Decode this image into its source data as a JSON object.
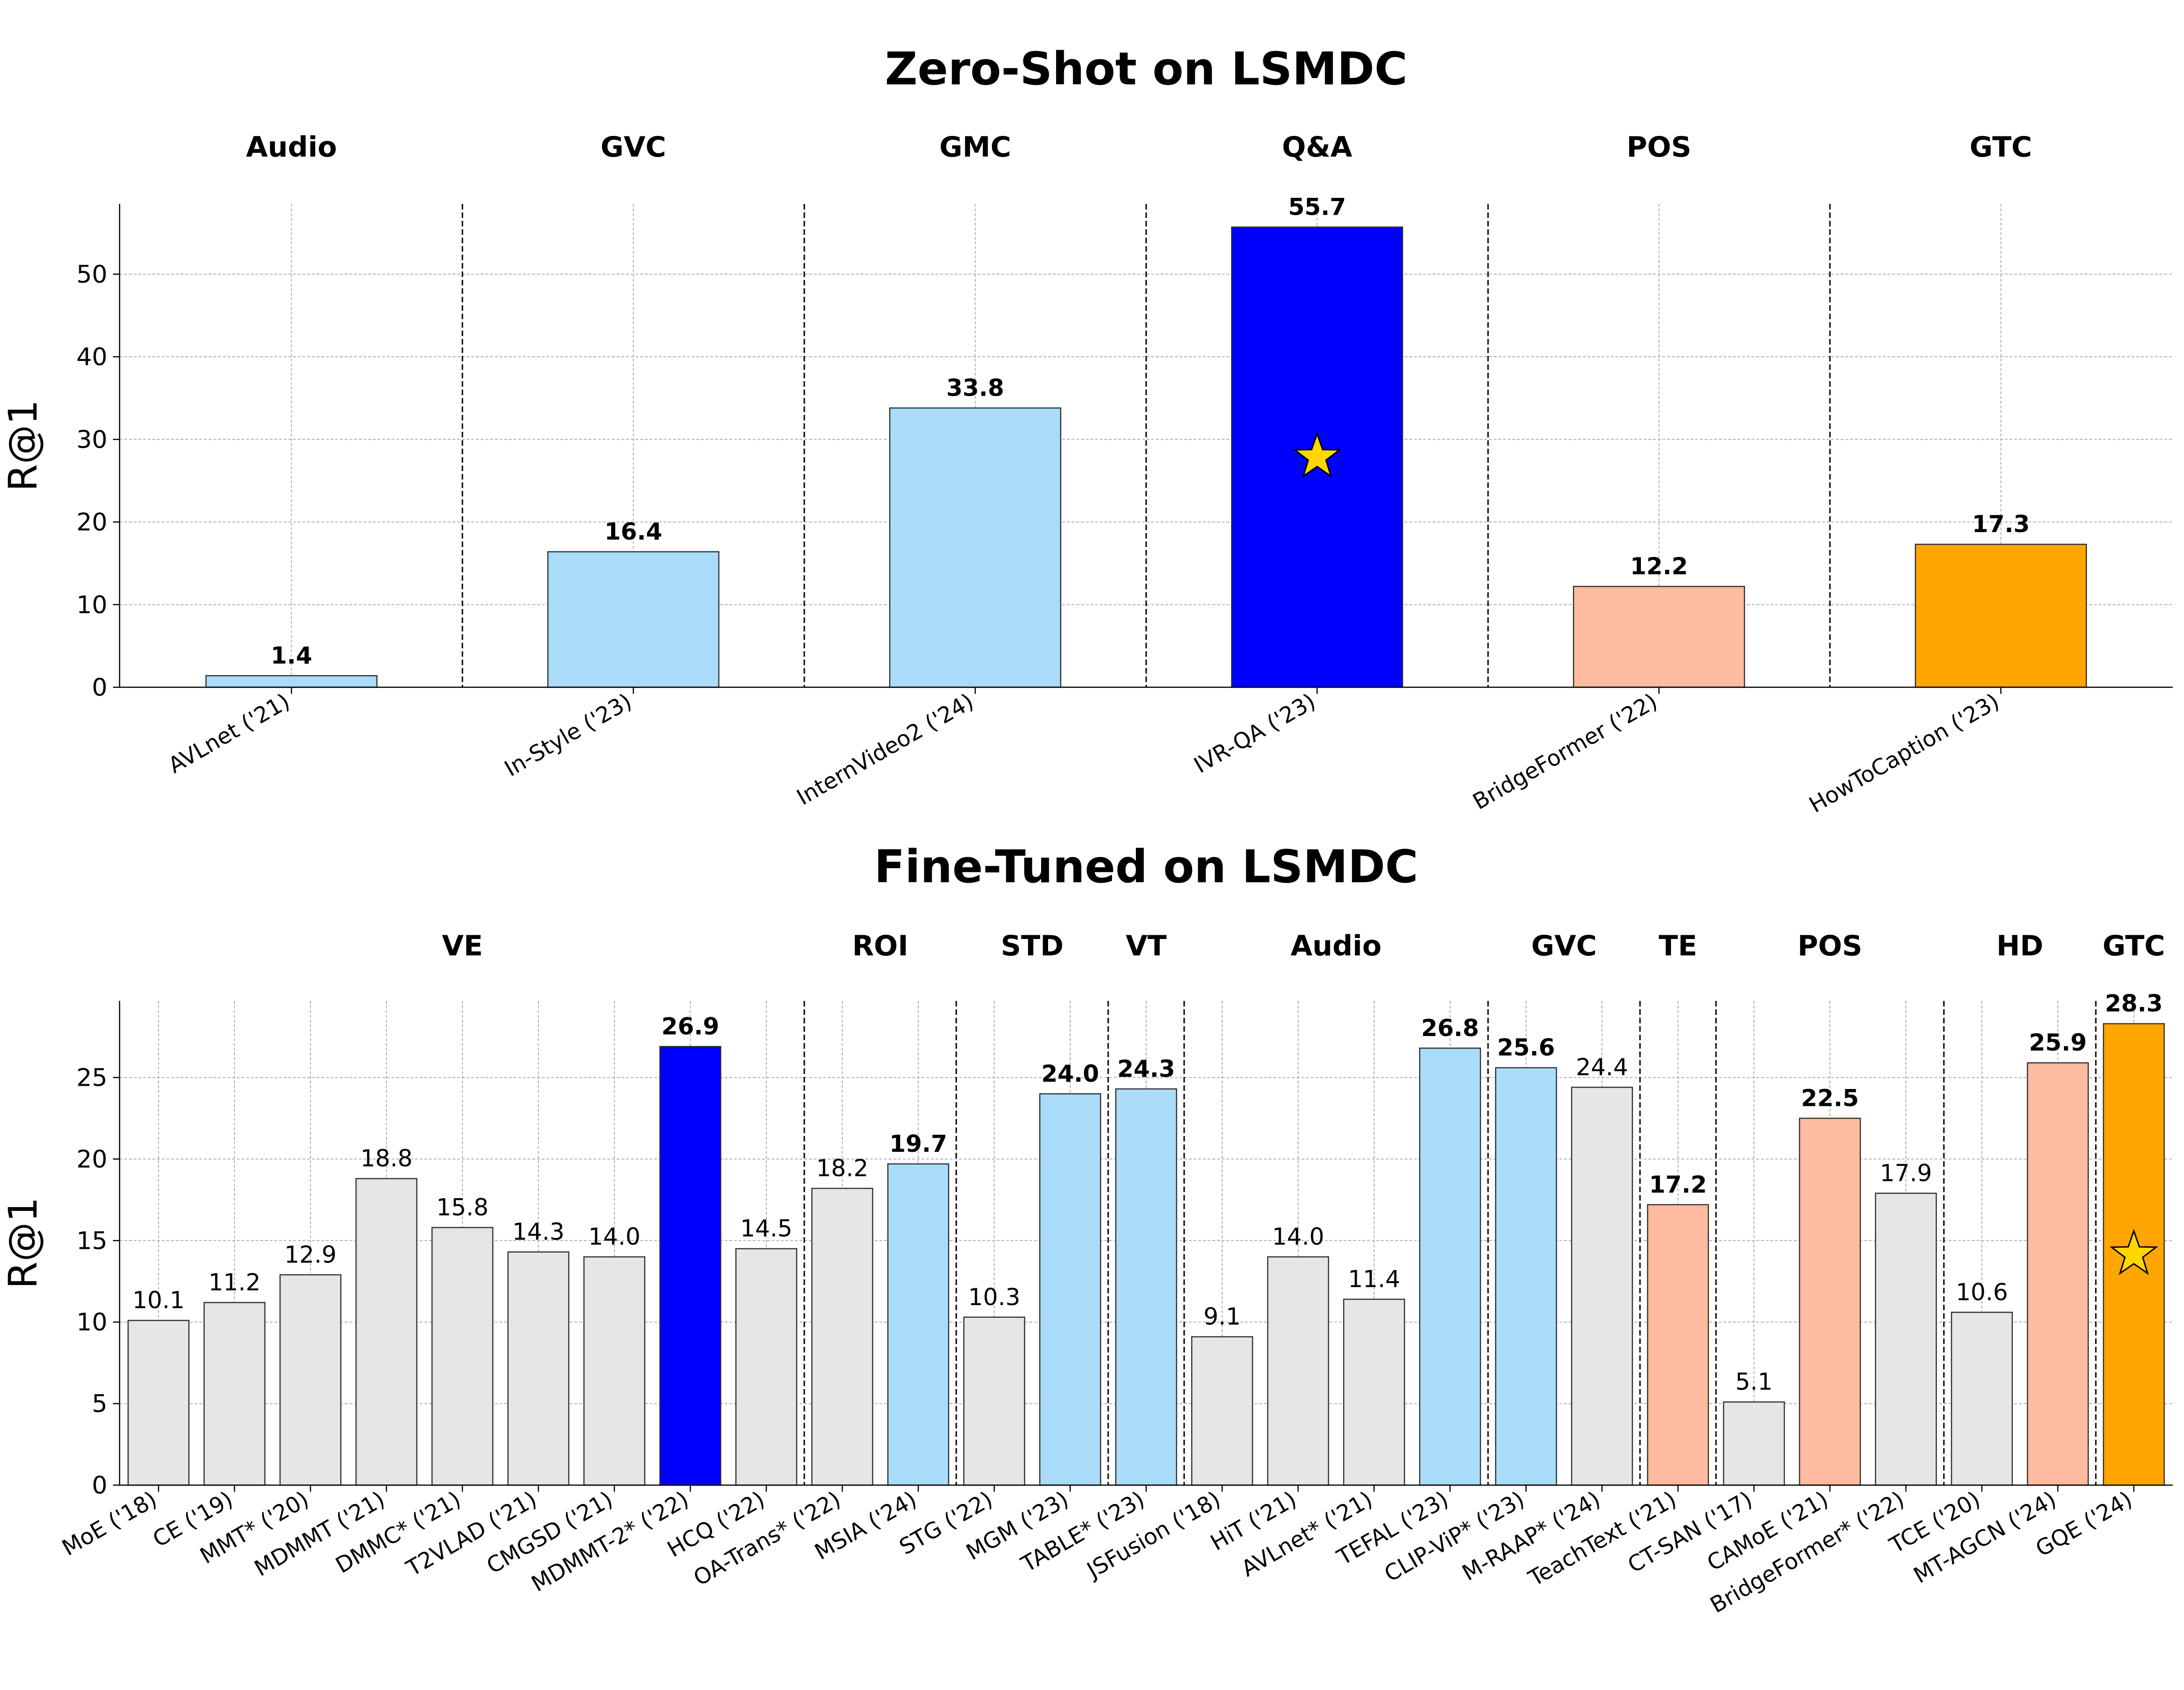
{
  "chart_data": [
    {
      "type": "bar",
      "title": "Zero-Shot on LSMDC",
      "xlabel": "",
      "ylabel": "R@1",
      "ylim": [
        0,
        58.5
      ],
      "yticks": [
        0,
        10,
        20,
        30,
        40,
        50
      ],
      "grid": true,
      "groups": [
        {
          "label": "Audio",
          "count": 1
        },
        {
          "label": "GVC",
          "count": 1
        },
        {
          "label": "GMC",
          "count": 1
        },
        {
          "label": "Q&A",
          "count": 1
        },
        {
          "label": "POS",
          "count": 1
        },
        {
          "label": "GTC",
          "count": 1
        }
      ],
      "categories": [
        "AVLnet ('21)",
        "In-Style ('23)",
        "InternVideo2 ('24)",
        "IVR-QA ('23)",
        "BridgeFormer ('22)",
        "HowToCaption ('23)"
      ],
      "values": [
        1.4,
        16.4,
        33.8,
        55.7,
        12.2,
        17.3
      ],
      "value_labels": [
        "1.4",
        "16.4",
        "33.8",
        "55.7",
        "12.2",
        "17.3"
      ],
      "bold_labels": [
        true,
        true,
        true,
        true,
        true,
        true
      ],
      "bar_colors": [
        "#aadcfa",
        "#aadcfa",
        "#aadcfa",
        "#0000ff",
        "#ffbba0",
        "#ffa500"
      ],
      "star_index": 3,
      "star_fill": "#ffd700"
    },
    {
      "type": "bar",
      "title": "Fine-Tuned on LSMDC",
      "xlabel": "",
      "ylabel": "R@1",
      "ylim": [
        0,
        29.7
      ],
      "yticks": [
        0,
        5,
        10,
        15,
        20,
        25
      ],
      "grid": true,
      "groups": [
        {
          "label": "VE",
          "count": 9
        },
        {
          "label": "ROI",
          "count": 2
        },
        {
          "label": "STD",
          "count": 2
        },
        {
          "label": "VT",
          "count": 1
        },
        {
          "label": "Audio",
          "count": 4
        },
        {
          "label": "GVC",
          "count": 2
        },
        {
          "label": "TE",
          "count": 1
        },
        {
          "label": "POS",
          "count": 3
        },
        {
          "label": "HD",
          "count": 2
        },
        {
          "label": "GTC",
          "count": 1
        }
      ],
      "categories": [
        "MoE ('18)",
        "CE ('19)",
        "MMT* ('20)",
        "MDMMT ('21)",
        "DMMC* ('21)",
        "T2VLAD ('21)",
        "CMGSD ('21)",
        "MDMMT-2* ('22)",
        "HCQ ('22)",
        "OA-Trans* ('22)",
        "MSIA ('24)",
        "STG ('22)",
        "MGM ('23)",
        "TABLE* ('23)",
        "JSFusion ('18)",
        "HiT ('21)",
        "AVLnet* ('21)",
        "TEFAL ('23)",
        "CLIP-ViP* ('23)",
        "M-RAAP* ('24)",
        "TeachText ('21)",
        "CT-SAN ('17)",
        "CAMoE ('21)",
        "BridgeFormer* ('22)",
        "TCE ('20)",
        "MT-AGCN ('24)",
        "GQE ('24)"
      ],
      "values": [
        10.1,
        11.2,
        12.9,
        18.8,
        15.8,
        14.3,
        14.0,
        26.9,
        14.5,
        18.2,
        19.7,
        10.3,
        24.0,
        24.3,
        9.1,
        14.0,
        11.4,
        26.8,
        25.6,
        24.4,
        17.2,
        5.1,
        22.5,
        17.9,
        10.6,
        25.9,
        28.3
      ],
      "value_labels": [
        "10.1",
        "11.2",
        "12.9",
        "18.8",
        "15.8",
        "14.3",
        "14.0",
        "26.9",
        "14.5",
        "18.2",
        "19.7",
        "10.3",
        "24.0",
        "24.3",
        "9.1",
        "14.0",
        "11.4",
        "26.8",
        "25.6",
        "24.4",
        "17.2",
        "5.1",
        "22.5",
        "17.9",
        "10.6",
        "25.9",
        "28.3"
      ],
      "bold_labels": [
        false,
        false,
        false,
        false,
        false,
        false,
        false,
        true,
        false,
        false,
        true,
        false,
        true,
        true,
        false,
        false,
        false,
        true,
        true,
        false,
        true,
        false,
        true,
        false,
        false,
        true,
        true
      ],
      "bar_colors": [
        "#e6e6e6",
        "#e6e6e6",
        "#e6e6e6",
        "#e6e6e6",
        "#e6e6e6",
        "#e6e6e6",
        "#e6e6e6",
        "#0000ff",
        "#e6e6e6",
        "#e6e6e6",
        "#aadcfa",
        "#e6e6e6",
        "#aadcfa",
        "#aadcfa",
        "#e6e6e6",
        "#e6e6e6",
        "#e6e6e6",
        "#aadcfa",
        "#aadcfa",
        "#e6e6e6",
        "#ffbba0",
        "#e6e6e6",
        "#ffbba0",
        "#e6e6e6",
        "#e6e6e6",
        "#ffbba0",
        "#ffa500"
      ],
      "star_index": 26,
      "star_fill": "#ffd700"
    }
  ]
}
